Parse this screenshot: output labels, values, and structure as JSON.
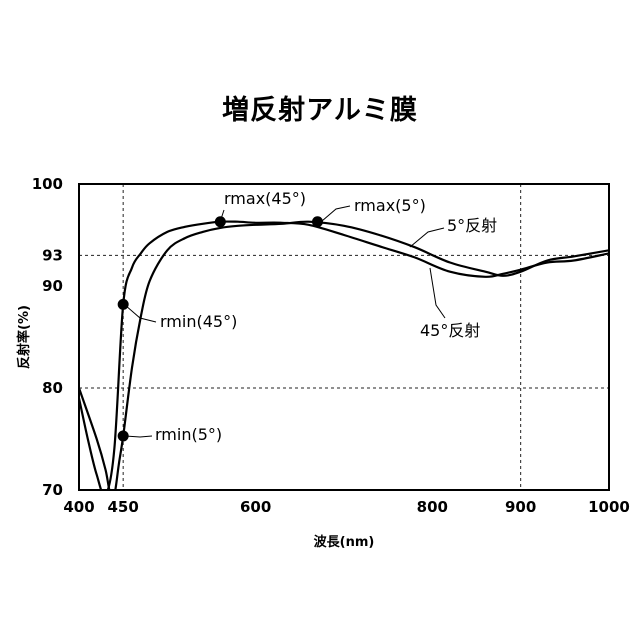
{
  "title": "増反射アルミ膜",
  "chart_data": {
    "type": "line",
    "title": "増反射アルミ膜",
    "xlabel": "波長(nm)",
    "ylabel": "反射率(%)",
    "xlim": [
      400,
      1000
    ],
    "ylim": [
      70,
      100
    ],
    "x_ticks": [
      400,
      450,
      600,
      800,
      900,
      1000
    ],
    "y_ticks": [
      70,
      80,
      90,
      93,
      100
    ],
    "ref_lines": {
      "x": [
        450,
        900
      ],
      "y": [
        80,
        93
      ]
    },
    "series": [
      {
        "name": "45°反射",
        "x": [
          400,
          410,
          420,
          430,
          440,
          450,
          460,
          470,
          480,
          500,
          520,
          540,
          560,
          580,
          600,
          630,
          660,
          700,
          740,
          780,
          820,
          860,
          880,
          900,
          930,
          960,
          1000
        ],
        "y": [
          79,
          75,
          71.5,
          69.5,
          74,
          88.2,
          91.8,
          93.2,
          94.2,
          95.3,
          95.8,
          96.1,
          96.3,
          96.3,
          96.2,
          96.2,
          96.0,
          95.0,
          93.9,
          92.8,
          91.4,
          90.9,
          91.2,
          91.6,
          92.3,
          92.5,
          93.2
        ]
      },
      {
        "name": "5°反射",
        "x": [
          400,
          420,
          430,
          435,
          440,
          445,
          450,
          460,
          470,
          480,
          500,
          520,
          540,
          560,
          580,
          600,
          630,
          660,
          700,
          740,
          780,
          820,
          860,
          880,
          900,
          930,
          960,
          1000
        ],
        "y": [
          80,
          75,
          72,
          69.8,
          69.5,
          72.5,
          75.3,
          82,
          87,
          90.5,
          93.5,
          94.7,
          95.3,
          95.7,
          95.9,
          96.0,
          96.1,
          96.3,
          95.9,
          95.0,
          93.8,
          92.3,
          91.4,
          91.0,
          91.4,
          92.5,
          92.9,
          93.5
        ]
      }
    ],
    "markers": [
      {
        "label": "rmin(45°)",
        "x": 450,
        "y": 88.2
      },
      {
        "label": "rmin(5°)",
        "x": 450,
        "y": 75.3
      },
      {
        "label": "rmax(45°)",
        "x": 560,
        "y": 96.3
      },
      {
        "label": "rmax(5°)",
        "x": 670,
        "y": 96.3
      }
    ],
    "curve_labels": [
      "5°反射",
      "45°反射"
    ],
    "grid": false,
    "legend": "none"
  }
}
